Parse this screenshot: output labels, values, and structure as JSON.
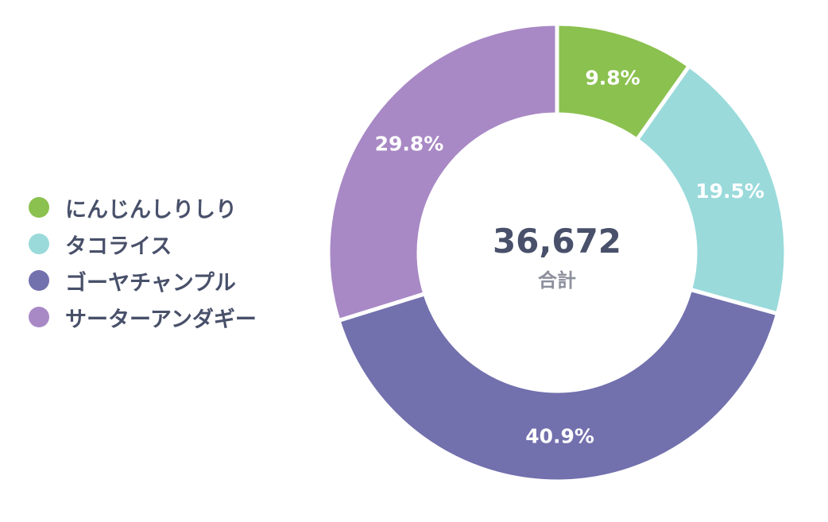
{
  "chart_data": {
    "type": "pie",
    "variant": "donut",
    "categories": [
      "にんじんしりしり",
      "タコライス",
      "ゴーヤチャンプル",
      "サーターアンダギー"
    ],
    "values": [
      9.8,
      19.5,
      40.9,
      29.8
    ],
    "value_labels": [
      "9.8%",
      "19.5%",
      "40.9%",
      "29.8%"
    ],
    "colors": [
      "#8bc14f",
      "#9adadb",
      "#7270ad",
      "#a889c5"
    ],
    "center_value": "36,672",
    "center_label": "合計",
    "legend": "left"
  }
}
